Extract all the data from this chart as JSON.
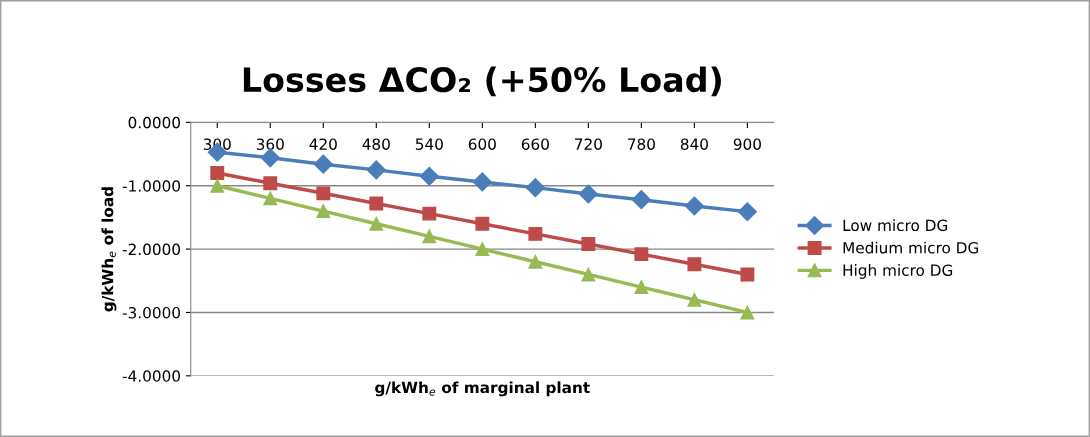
{
  "chart_data": {
    "type": "line",
    "title": "Losses ΔCO₂ (+50% Load)",
    "xlabel": "g/kWh$_{e}$ of marginal plant",
    "ylabel": "g/kWh$_{e}$ of load",
    "categories": [
      "300",
      "360",
      "420",
      "480",
      "540",
      "600",
      "660",
      "720",
      "780",
      "840",
      "900"
    ],
    "series": [
      {
        "name": "Low micro DG",
        "color": "#4a7ebb",
        "marker": "diamond",
        "values": [
          -0.47,
          -0.56,
          -0.66,
          -0.75,
          -0.85,
          -0.94,
          -1.03,
          -1.13,
          -1.22,
          -1.32,
          -1.41
        ]
      },
      {
        "name": "Medium micro DG",
        "color": "#be4b48",
        "marker": "square",
        "values": [
          -0.8,
          -0.96,
          -1.12,
          -1.28,
          -1.44,
          -1.6,
          -1.76,
          -1.92,
          -2.08,
          -2.24,
          -2.4
        ]
      },
      {
        "name": "High micro DG",
        "color": "#98b954",
        "marker": "triangle",
        "values": [
          -1.0,
          -1.2,
          -1.4,
          -1.6,
          -1.8,
          -2.0,
          -2.2,
          -2.4,
          -2.6,
          -2.8,
          -3.0
        ]
      }
    ],
    "ylim": [
      -4,
      0
    ],
    "yticks": [
      {
        "value": 0,
        "label": "0.0000"
      },
      {
        "value": -1,
        "label": "-1.0000"
      },
      {
        "value": -2,
        "label": "-2.0000"
      },
      {
        "value": -3,
        "label": "-3.0000"
      },
      {
        "value": -4,
        "label": "-4.0000"
      }
    ],
    "grid": "y",
    "legend": "right",
    "line_style": "solid"
  }
}
